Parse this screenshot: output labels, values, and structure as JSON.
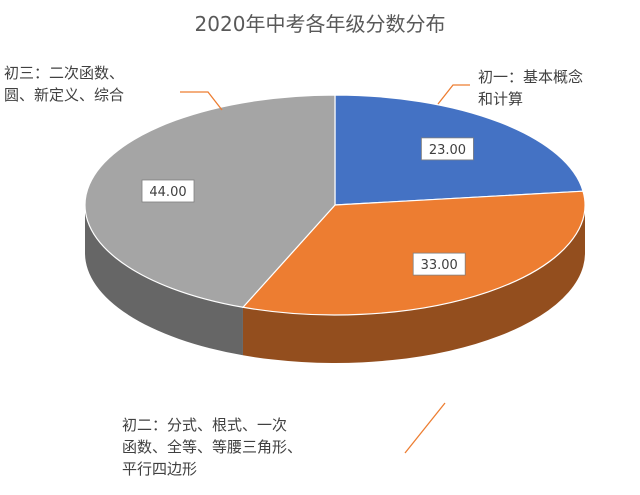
{
  "chart_data": {
    "type": "pie",
    "style": "3d",
    "title": "2020年中考各年级分数分布",
    "categories": [
      "初一：基本概念和计算",
      "初二：分式、根式、一次函数、全等、等腰三角形、平行四边形",
      "初三：二次函数、圆、新定义、综合"
    ],
    "values": [
      23.0,
      33.0,
      44.0
    ],
    "value_labels": [
      "23.00",
      "33.00",
      "44.00"
    ],
    "colors": [
      "#4472C4",
      "#ED7D31",
      "#A5A5A5"
    ],
    "legend": "none",
    "label_lines": {
      "slice_0": "初一：基本概念\n和计算",
      "slice_1": "初二：分式、根式、一次\n函数、全等、等腰三角形、\n平行四边形",
      "slice_2": "初三：二次函数、\n圆、新定义、综合"
    }
  }
}
